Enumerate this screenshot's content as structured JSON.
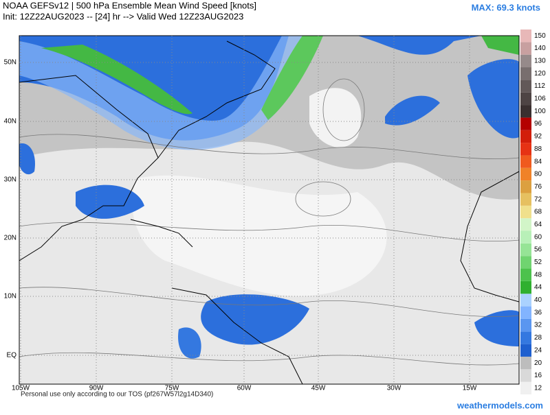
{
  "header": {
    "title": "NOAA GEFSv12 | 500 hPa Ensemble Mean Wind Speed [knots]",
    "init": "Init: 12Z22AUG2023 -- [24] hr --> Valid Wed 12Z23AUG2023",
    "max": "MAX: 69.3 knots"
  },
  "map": {
    "lat_labels": [
      "50N",
      "40N",
      "30N",
      "20N",
      "10N",
      "EQ"
    ],
    "lon_labels": [
      "105W",
      "90W",
      "75W",
      "60W",
      "45W",
      "30W",
      "15W"
    ]
  },
  "colorbar": {
    "levels": [
      12,
      16,
      20,
      24,
      28,
      32,
      36,
      40,
      44,
      48,
      52,
      56,
      60,
      64,
      68,
      72,
      76,
      80,
      84,
      88,
      92,
      96,
      100,
      106,
      112,
      120,
      130,
      140,
      150
    ],
    "colors": [
      "#f0f0f0",
      "#d9d9d9",
      "#bdbdbd",
      "#1e5fcf",
      "#3478e0",
      "#5a96f0",
      "#82b4ff",
      "#aad2ff",
      "#30b030",
      "#4cc24c",
      "#70d470",
      "#96e496",
      "#b8f0b8",
      "#d2f5c8",
      "#f0e08c",
      "#e6c060",
      "#dca040",
      "#f08228",
      "#f05a1e",
      "#e63214",
      "#d21e0a",
      "#b40000",
      "#3a3030",
      "#4e4444",
      "#625858",
      "#786e6e",
      "#968a8a",
      "#c8a0a0",
      "#e8b8b8"
    ]
  },
  "footer": {
    "tos": "Personal use only according to our TOS (pf267W57l2g14D340)",
    "site": "weathermodels.com"
  }
}
